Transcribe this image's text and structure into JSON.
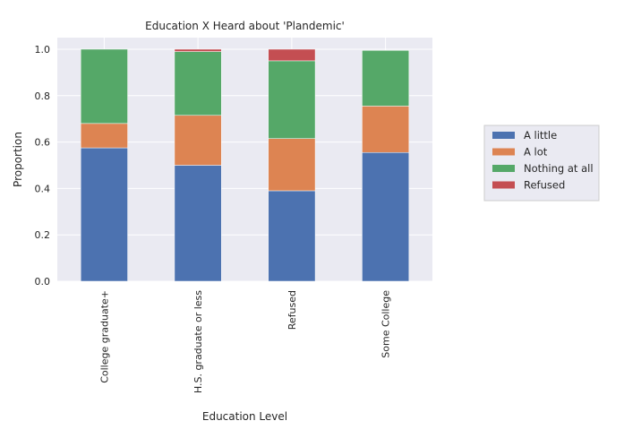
{
  "chart_data": {
    "type": "bar",
    "stacked": true,
    "title": "Education X Heard about 'Plandemic'",
    "xlabel": "Education Level",
    "ylabel": "Proportion",
    "ylim": [
      0,
      1.05
    ],
    "yticks": [
      0.0,
      0.2,
      0.4,
      0.6,
      0.8,
      1.0
    ],
    "ytick_labels": [
      "0.0",
      "0.2",
      "0.4",
      "0.6",
      "0.8",
      "1.0"
    ],
    "grid": true,
    "legend_position": "right",
    "categories": [
      "College graduate+",
      "H.S. graduate or less",
      "Refused",
      "Some College"
    ],
    "series": [
      {
        "name": "A little",
        "color": "#4c72b0",
        "values": [
          0.575,
          0.5,
          0.39,
          0.555
        ]
      },
      {
        "name": "A lot",
        "color": "#dd8452",
        "values": [
          0.105,
          0.215,
          0.225,
          0.2
        ]
      },
      {
        "name": "Nothing at all",
        "color": "#55a868",
        "values": [
          0.32,
          0.275,
          0.335,
          0.24
        ]
      },
      {
        "name": "Refused",
        "color": "#c44e52",
        "values": [
          0.0,
          0.01,
          0.05,
          0.0
        ]
      }
    ]
  }
}
